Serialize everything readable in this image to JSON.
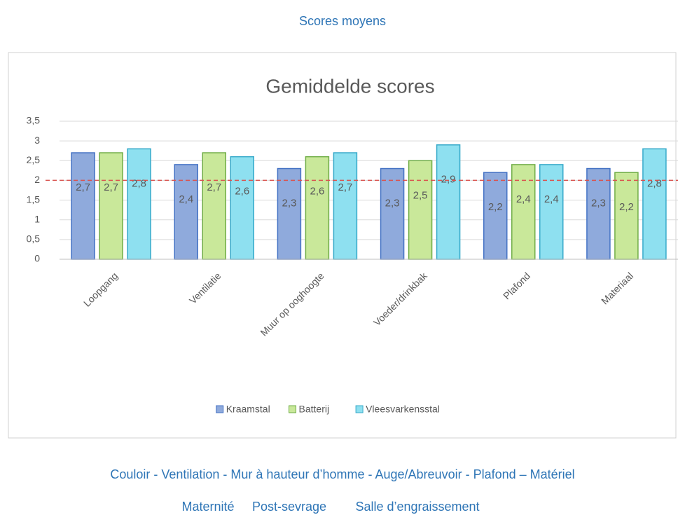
{
  "header": {
    "title": "Scores moyens"
  },
  "chart_data": {
    "type": "bar",
    "title": "Gemiddelde scores",
    "categories": [
      "Loopgang",
      "Ventilatie",
      "Muur op ooghoogte",
      "Voeder/drinkbak",
      "Plafond",
      "Materiaal"
    ],
    "series": [
      {
        "name": "Kraamstal",
        "color": "#8faadc",
        "values": [
          2.7,
          2.4,
          2.3,
          2.3,
          2.2,
          2.3
        ],
        "value_labels": [
          "2,7",
          "2,4",
          "2,3",
          "2,3",
          "2,2",
          "2,3"
        ]
      },
      {
        "name": "Batterij",
        "color": "#c9e89a",
        "values": [
          2.7,
          2.7,
          2.6,
          2.5,
          2.4,
          2.2
        ],
        "value_labels": [
          "2,7",
          "2,7",
          "2,6",
          "2,5",
          "2,4",
          "2,2"
        ]
      },
      {
        "name": "Vleesvarkensstal",
        "color": "#8ee0f0",
        "values": [
          2.8,
          2.6,
          2.7,
          2.9,
          2.4,
          2.8
        ],
        "value_labels": [
          "2,8",
          "2,6",
          "2,7",
          "2,9",
          "2,4",
          "2,8"
        ]
      }
    ],
    "ylim": [
      0,
      3.5
    ],
    "yticks": [
      0,
      {
        "value": 0.5,
        "label": "0,5"
      },
      1,
      {
        "value": 1.5,
        "label": "1,5"
      },
      2,
      {
        "value": 2.5,
        "label": "2,5"
      },
      3,
      {
        "value": 3.5,
        "label": "3,5"
      }
    ],
    "grid": true,
    "legend": "bottom",
    "reference_line": {
      "value": 2,
      "color": "#d9534f"
    }
  },
  "footer": {
    "line1": "Couloir - Ventilation - Mur à hauteur d’homme - Auge/Abreuvoir - Plafond – Matériel",
    "line2": [
      "Maternité",
      "Post-sevrage",
      "Salle d’engraissement"
    ]
  }
}
